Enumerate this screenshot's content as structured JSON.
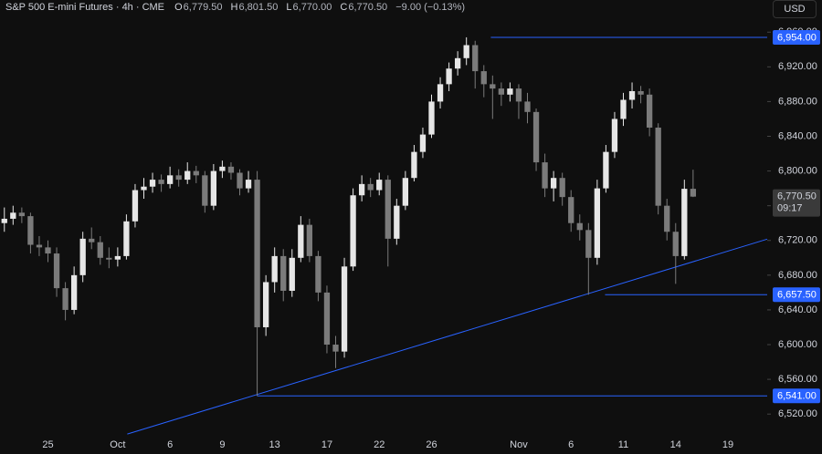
{
  "chart_data": {
    "type": "candlestick",
    "header": {
      "symbol": "S&P 500 E-mini Futures · 4h · CME",
      "open_label": "O",
      "open": "6,779.50",
      "high_label": "H",
      "high": "6,801.50",
      "low_label": "L",
      "low": "6,770.00",
      "close_label": "C",
      "close": "6,770.50",
      "change": "−9.00 (−0.13%)"
    },
    "currency": "USD",
    "categories": [
      null,
      null,
      null,
      null,
      null,
      "25",
      null,
      null,
      null,
      null,
      null,
      null,
      null,
      "Oct",
      null,
      null,
      null,
      null,
      null,
      "6",
      null,
      null,
      null,
      null,
      null,
      "9",
      null,
      null,
      null,
      null,
      null,
      "13",
      null,
      null,
      null,
      null,
      null,
      "17",
      null,
      null,
      null,
      null,
      null,
      "22",
      null,
      null,
      null,
      null,
      null,
      "26",
      null,
      null,
      null,
      null,
      null,
      null,
      null,
      null,
      null,
      "Nov",
      null,
      null,
      null,
      null,
      null,
      "6",
      null,
      null,
      null,
      null,
      null,
      "11",
      null,
      null,
      null,
      null,
      null,
      "14",
      null,
      null,
      null,
      null,
      null,
      "19",
      null,
      null,
      null,
      null
    ],
    "ohlc": [
      [
        6740,
        6758,
        6730,
        6745
      ],
      [
        6745,
        6760,
        6738,
        6752
      ],
      [
        6752,
        6758,
        6740,
        6748
      ],
      [
        6748,
        6752,
        6705,
        6715
      ],
      [
        6715,
        6725,
        6702,
        6712
      ],
      [
        6712,
        6720,
        6695,
        6705
      ],
      [
        6705,
        6712,
        6655,
        6665
      ],
      [
        6665,
        6672,
        6628,
        6640
      ],
      [
        6640,
        6690,
        6635,
        6680
      ],
      [
        6680,
        6730,
        6672,
        6722
      ],
      [
        6722,
        6735,
        6710,
        6718
      ],
      [
        6718,
        6725,
        6692,
        6700
      ],
      [
        6700,
        6712,
        6688,
        6698
      ],
      [
        6698,
        6712,
        6690,
        6702
      ],
      [
        6702,
        6750,
        6698,
        6742
      ],
      [
        6742,
        6785,
        6735,
        6778
      ],
      [
        6778,
        6792,
        6768,
        6782
      ],
      [
        6782,
        6798,
        6775,
        6790
      ],
      [
        6790,
        6796,
        6776,
        6785
      ],
      [
        6785,
        6805,
        6780,
        6795
      ],
      [
        6795,
        6802,
        6782,
        6790
      ],
      [
        6790,
        6810,
        6785,
        6800
      ],
      [
        6800,
        6806,
        6786,
        6795
      ],
      [
        6795,
        6800,
        6752,
        6760
      ],
      [
        6760,
        6808,
        6755,
        6800
      ],
      [
        6800,
        6812,
        6792,
        6805
      ],
      [
        6805,
        6810,
        6790,
        6798
      ],
      [
        6798,
        6802,
        6772,
        6780
      ],
      [
        6780,
        6800,
        6775,
        6790
      ],
      [
        6790,
        6800,
        6541,
        6620
      ],
      [
        6620,
        6680,
        6610,
        6672
      ],
      [
        6672,
        6712,
        6660,
        6702
      ],
      [
        6702,
        6710,
        6650,
        6662
      ],
      [
        6662,
        6710,
        6655,
        6700
      ],
      [
        6700,
        6748,
        6695,
        6738
      ],
      [
        6738,
        6745,
        6695,
        6702
      ],
      [
        6702,
        6708,
        6650,
        6660
      ],
      [
        6660,
        6668,
        6590,
        6600
      ],
      [
        6600,
        6610,
        6573,
        6592
      ],
      [
        6592,
        6700,
        6585,
        6690
      ],
      [
        6690,
        6780,
        6685,
        6772
      ],
      [
        6772,
        6795,
        6765,
        6785
      ],
      [
        6785,
        6792,
        6770,
        6778
      ],
      [
        6778,
        6798,
        6772,
        6790
      ],
      [
        6790,
        6795,
        6690,
        6722
      ],
      [
        6722,
        6768,
        6715,
        6760
      ],
      [
        6760,
        6800,
        6755,
        6792
      ],
      [
        6792,
        6830,
        6788,
        6822
      ],
      [
        6822,
        6850,
        6815,
        6842
      ],
      [
        6842,
        6888,
        6838,
        6880
      ],
      [
        6880,
        6908,
        6872,
        6900
      ],
      [
        6900,
        6925,
        6892,
        6918
      ],
      [
        6918,
        6938,
        6910,
        6930
      ],
      [
        6930,
        6954,
        6922,
        6945
      ],
      [
        6945,
        6950,
        6895,
        6915
      ],
      [
        6915,
        6922,
        6885,
        6900
      ],
      [
        6900,
        6910,
        6860,
        6895
      ],
      [
        6895,
        6902,
        6875,
        6888
      ],
      [
        6888,
        6902,
        6880,
        6895
      ],
      [
        6895,
        6900,
        6860,
        6880
      ],
      [
        6880,
        6890,
        6855,
        6868
      ],
      [
        6868,
        6872,
        6800,
        6810
      ],
      [
        6810,
        6820,
        6770,
        6780
      ],
      [
        6780,
        6800,
        6765,
        6792
      ],
      [
        6792,
        6798,
        6760,
        6770
      ],
      [
        6770,
        6778,
        6730,
        6740
      ],
      [
        6740,
        6750,
        6720,
        6732
      ],
      [
        6732,
        6740,
        6657.5,
        6700
      ],
      [
        6700,
        6790,
        6692,
        6780
      ],
      [
        6780,
        6830,
        6775,
        6822
      ],
      [
        6822,
        6868,
        6815,
        6860
      ],
      [
        6860,
        6890,
        6852,
        6882
      ],
      [
        6882,
        6902,
        6872,
        6892
      ],
      [
        6892,
        6898,
        6878,
        6888
      ],
      [
        6888,
        6895,
        6840,
        6850
      ],
      [
        6850,
        6855,
        6750,
        6760
      ],
      [
        6760,
        6768,
        6720,
        6730
      ],
      [
        6730,
        6740,
        6670,
        6702
      ],
      [
        6702,
        6790,
        6698,
        6779.5
      ],
      [
        6779.5,
        6801.5,
        6770,
        6770.5
      ],
      null,
      null,
      null,
      null,
      null,
      null,
      null,
      null
    ],
    "up_color": "#e6e6e6",
    "down_color": "#7b7b7b",
    "ylim": [
      6495,
      6997
    ],
    "yticks": [
      {
        "value": 6520,
        "label": "6,520.00"
      },
      {
        "value": 6560,
        "label": "6,560.00"
      },
      {
        "value": 6600,
        "label": "6,600.00"
      },
      {
        "value": 6640,
        "label": "6,640.00"
      },
      {
        "value": 6680,
        "label": "6,680.00"
      },
      {
        "value": 6720,
        "label": "6,720.00"
      },
      {
        "value": 6760,
        "label": "6,760.00"
      },
      {
        "value": 6800,
        "label": "6,800.00"
      },
      {
        "value": 6840,
        "label": "6,840.00"
      },
      {
        "value": 6880,
        "label": "6,880.00"
      },
      {
        "value": 6920,
        "label": "6,920.00"
      },
      {
        "value": 6960,
        "label": "6,960.00"
      }
    ],
    "levels": [
      {
        "value": 6954,
        "label": "6,954.00",
        "start": 55.8
      },
      {
        "value": 6657.5,
        "label": "6,657.50",
        "start": 68.9
      },
      {
        "value": 6541,
        "label": "6,541.00",
        "start": 29
      }
    ],
    "level_color": "#2962ff",
    "trendline": {
      "from": [
        14.1,
        6497
      ],
      "to": [
        88,
        6721.5
      ]
    },
    "last_price": {
      "value": 6770.5,
      "label": "6,770.50",
      "countdown": "09:17"
    }
  }
}
